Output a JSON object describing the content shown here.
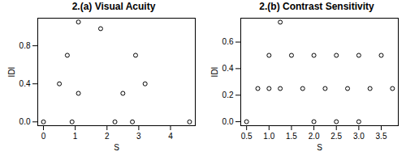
{
  "chart_data": [
    {
      "type": "scatter",
      "title": "2.(a) Visual Acuity",
      "xlabel": "S",
      "ylabel": "IDI",
      "x": [
        0,
        0.5,
        0.75,
        0.9,
        1.1,
        1.1,
        1.8,
        2.25,
        2.5,
        2.8,
        2.9,
        3.2,
        4.6
      ],
      "values": [
        0,
        0.4,
        0.7,
        0,
        0.3,
        1.05,
        0.98,
        0,
        0.3,
        0,
        0.7,
        0.4,
        0
      ],
      "xlim": [
        -0.18,
        4.78
      ],
      "ylim": [
        -0.04,
        1.09
      ],
      "xticks": [
        0,
        1,
        2,
        3,
        4
      ],
      "yticks": [
        {
          "value": 0,
          "label": "0.0"
        },
        0.4,
        0.8
      ],
      "marker": "circle_open",
      "color": "#000000"
    },
    {
      "type": "scatter",
      "title": "2.(b) Contrast Sensitivity",
      "xlabel": "S",
      "ylabel": "IDI",
      "x": [
        0.5,
        0.75,
        1,
        1,
        1.25,
        1.25,
        1.5,
        1.75,
        2,
        2,
        2.25,
        2.5,
        2.5,
        2.75,
        3,
        3,
        3.25,
        3.5,
        3.75
      ],
      "values": [
        0,
        0.25,
        0.5,
        0.25,
        0.75,
        0.25,
        0.5,
        0.25,
        0.5,
        0,
        0.25,
        0.5,
        0,
        0.25,
        0.5,
        0,
        0.25,
        0.5,
        0.25
      ],
      "xlim": [
        0.37,
        3.88
      ],
      "ylim": [
        -0.03,
        0.78
      ],
      "xticks": [
        0.5,
        {
          "value": 1,
          "label": "1.0"
        },
        1.5,
        {
          "value": 2,
          "label": "2.0"
        },
        2.5,
        {
          "value": 3,
          "label": "3.0"
        },
        3.5
      ],
      "yticks": [
        {
          "value": 0,
          "label": "0.0"
        },
        0.2,
        0.4,
        0.6
      ],
      "marker": "circle_open",
      "color": "#000000"
    }
  ]
}
